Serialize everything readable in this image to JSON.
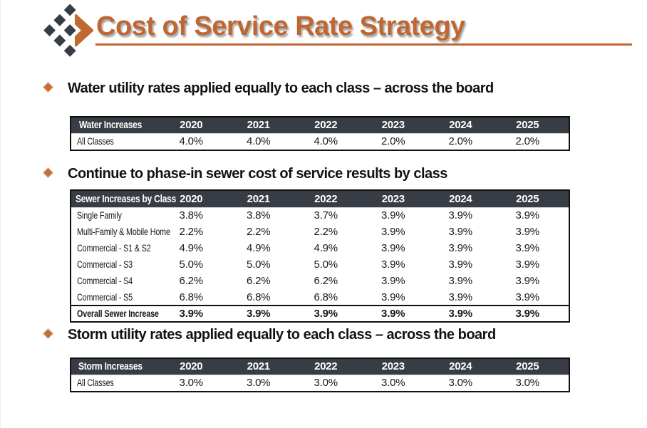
{
  "slide": {
    "title": "Cost of Service Rate Strategy",
    "colors": {
      "accent_orange": "#bf6732",
      "table_header_dark": "#383d45",
      "logo_diamond_dark": "#373d44",
      "bullet_orange": "#c4703b"
    }
  },
  "sections": [
    {
      "id": "water",
      "bullet": "Water utility rates applied equally to each class – across the board",
      "table": {
        "header": [
          "Water Increases",
          "2020",
          "2021",
          "2022",
          "2023",
          "2024",
          "2025"
        ],
        "rows": [
          [
            "All Classes",
            "4.0%",
            "4.0%",
            "4.0%",
            "2.0%",
            "2.0%",
            "2.0%"
          ]
        ]
      }
    },
    {
      "id": "sewer",
      "bullet": "Continue to phase-in sewer cost of service results by class",
      "table": {
        "header": [
          "Sewer Increases by Class",
          "2020",
          "2021",
          "2022",
          "2023",
          "2024",
          "2025"
        ],
        "rows": [
          [
            "Single Family",
            "3.8%",
            "3.8%",
            "3.7%",
            "3.9%",
            "3.9%",
            "3.9%"
          ],
          [
            "Multi-Family & Mobile Home",
            "2.2%",
            "2.2%",
            "2.2%",
            "3.9%",
            "3.9%",
            "3.9%"
          ],
          [
            "Commercial - S1 & S2",
            "4.9%",
            "4.9%",
            "4.9%",
            "3.9%",
            "3.9%",
            "3.9%"
          ],
          [
            "Commercial - S3",
            "5.0%",
            "5.0%",
            "5.0%",
            "3.9%",
            "3.9%",
            "3.9%"
          ],
          [
            "Commercial - S4",
            "6.2%",
            "6.2%",
            "6.2%",
            "3.9%",
            "3.9%",
            "3.9%"
          ],
          [
            "Commercial - S5",
            "6.8%",
            "6.8%",
            "6.8%",
            "3.9%",
            "3.9%",
            "3.9%"
          ]
        ],
        "footer": [
          "Overall Sewer Increase",
          "3.9%",
          "3.9%",
          "3.9%",
          "3.9%",
          "3.9%",
          "3.9%"
        ]
      }
    },
    {
      "id": "storm",
      "bullet": "Storm utility rates applied equally to each class – across the board",
      "table": {
        "header": [
          "Storm Increases",
          "2020",
          "2021",
          "2022",
          "2023",
          "2024",
          "2025"
        ],
        "rows": [
          [
            "All Classes",
            "3.0%",
            "3.0%",
            "3.0%",
            "3.0%",
            "3.0%",
            "3.0%"
          ]
        ]
      }
    }
  ]
}
